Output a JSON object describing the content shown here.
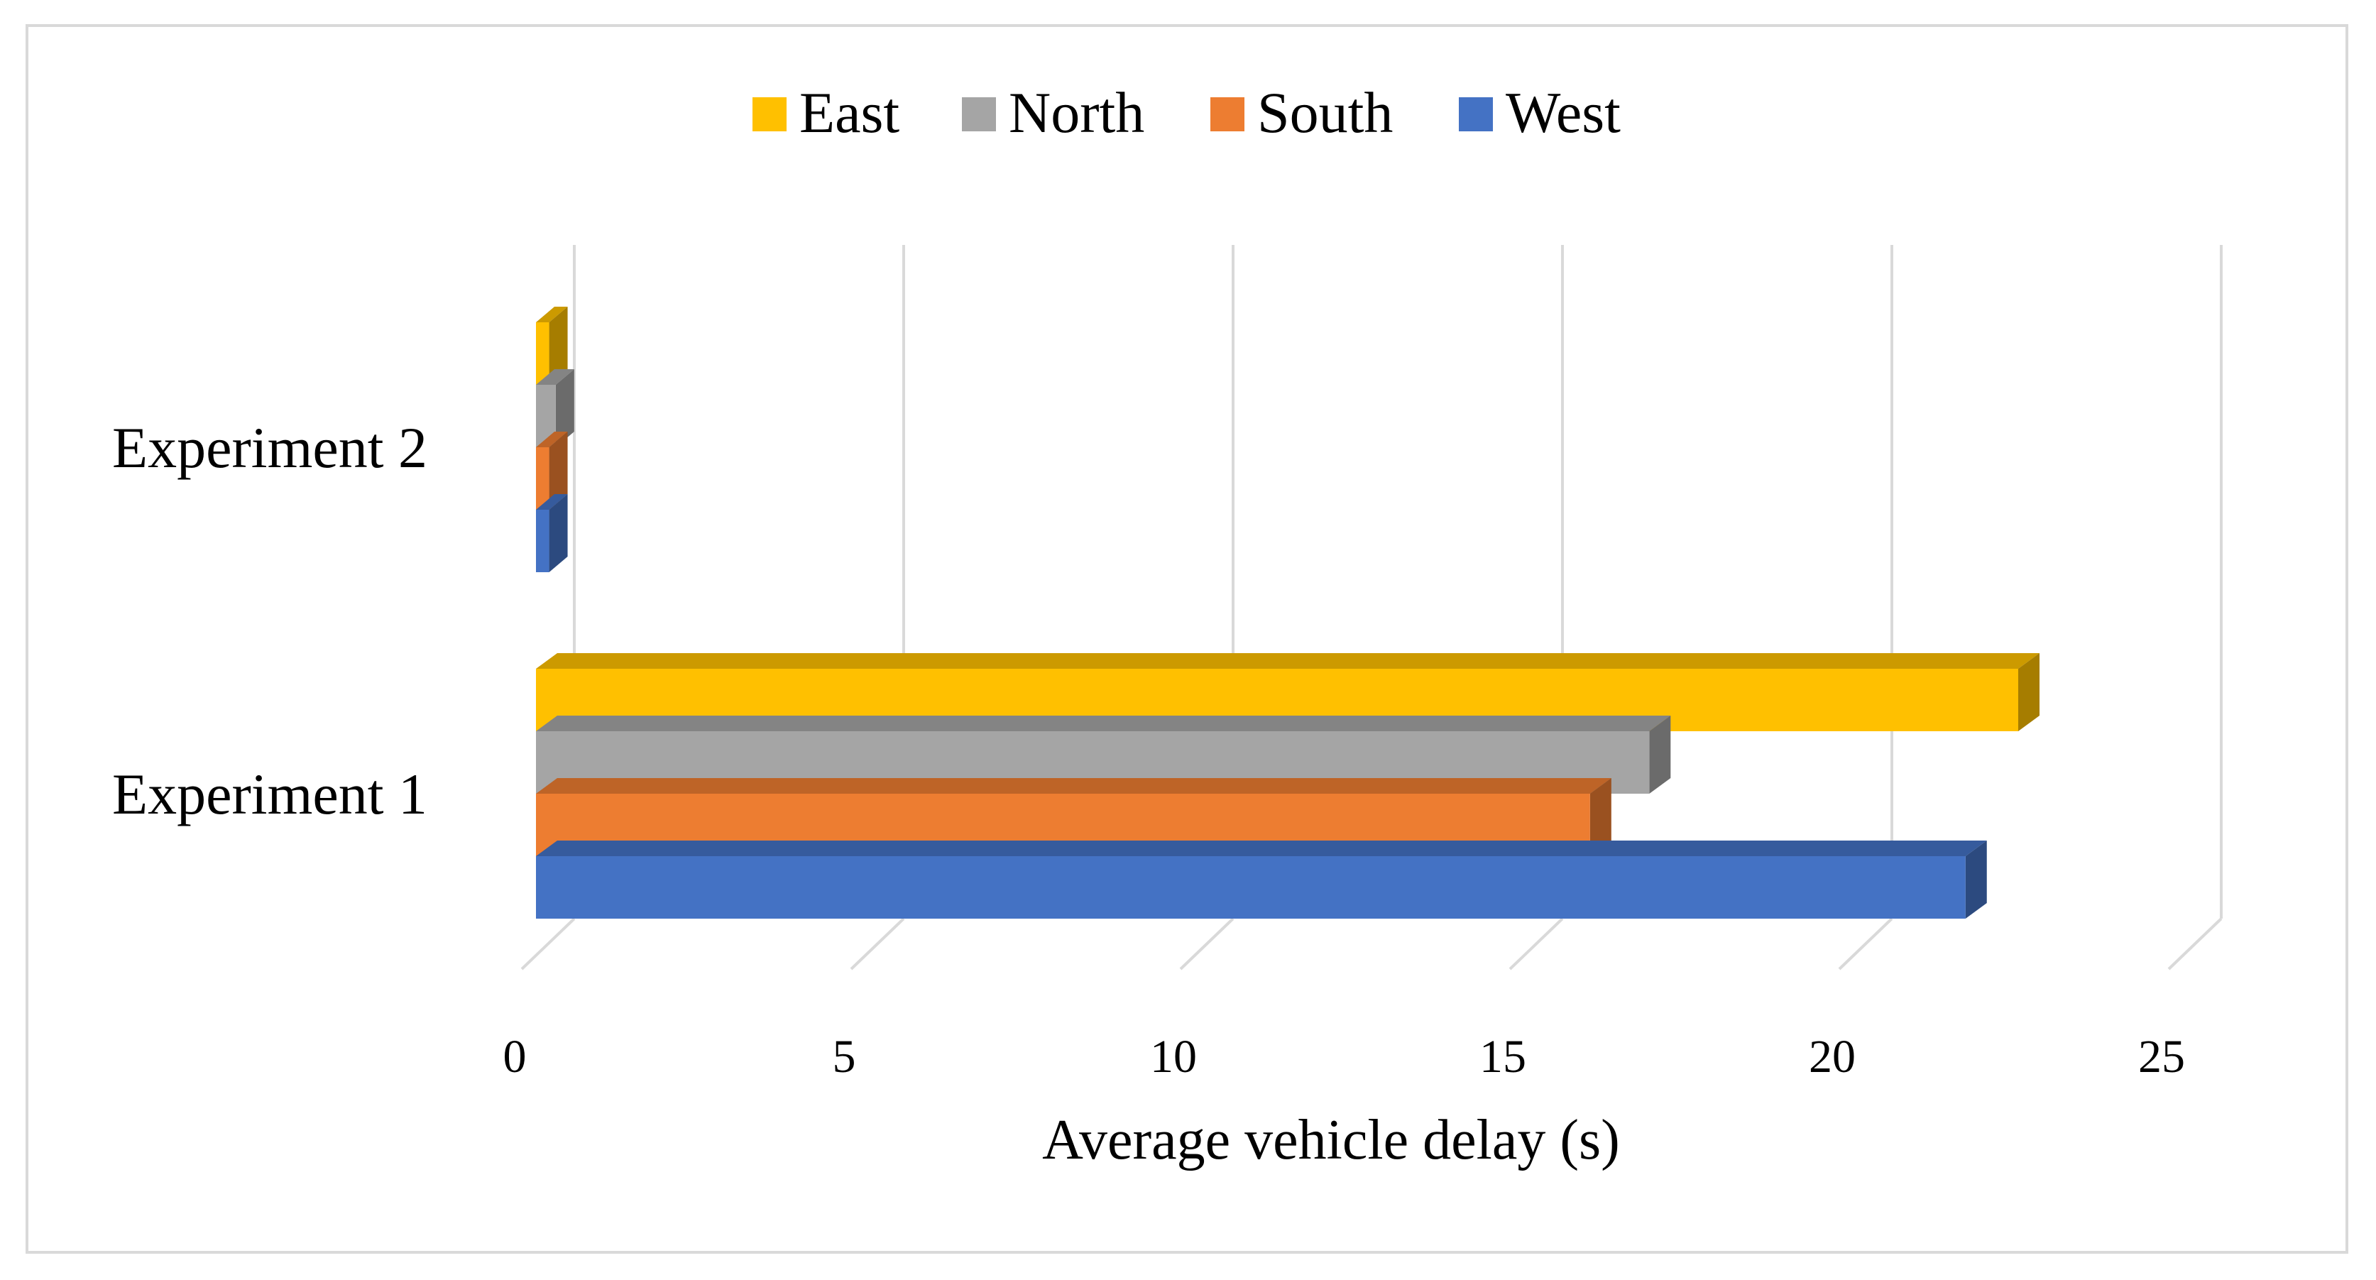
{
  "chart_data": {
    "type": "bar",
    "orientation": "horizontal",
    "style": "3d-clustered",
    "categories": [
      "Experiment 1",
      "Experiment 2"
    ],
    "series": [
      {
        "name": "West",
        "values": [
          21.7,
          0.2
        ],
        "color": "#4472C4"
      },
      {
        "name": "South",
        "values": [
          16.0,
          0.2
        ],
        "color": "#ED7D31"
      },
      {
        "name": "North",
        "values": [
          16.9,
          0.3
        ],
        "color": "#A5A5A5"
      },
      {
        "name": "East",
        "values": [
          22.5,
          0.2
        ],
        "color": "#FFC000"
      }
    ],
    "legend_order": [
      "East",
      "North",
      "South",
      "West"
    ],
    "title": "",
    "xlabel": "Average vehicle delay (s)",
    "ylabel": "",
    "xlim": [
      0,
      25
    ],
    "xticks": [
      "0",
      "5",
      "10",
      "15",
      "20",
      "25"
    ],
    "grid": true,
    "legend_position": "top"
  }
}
